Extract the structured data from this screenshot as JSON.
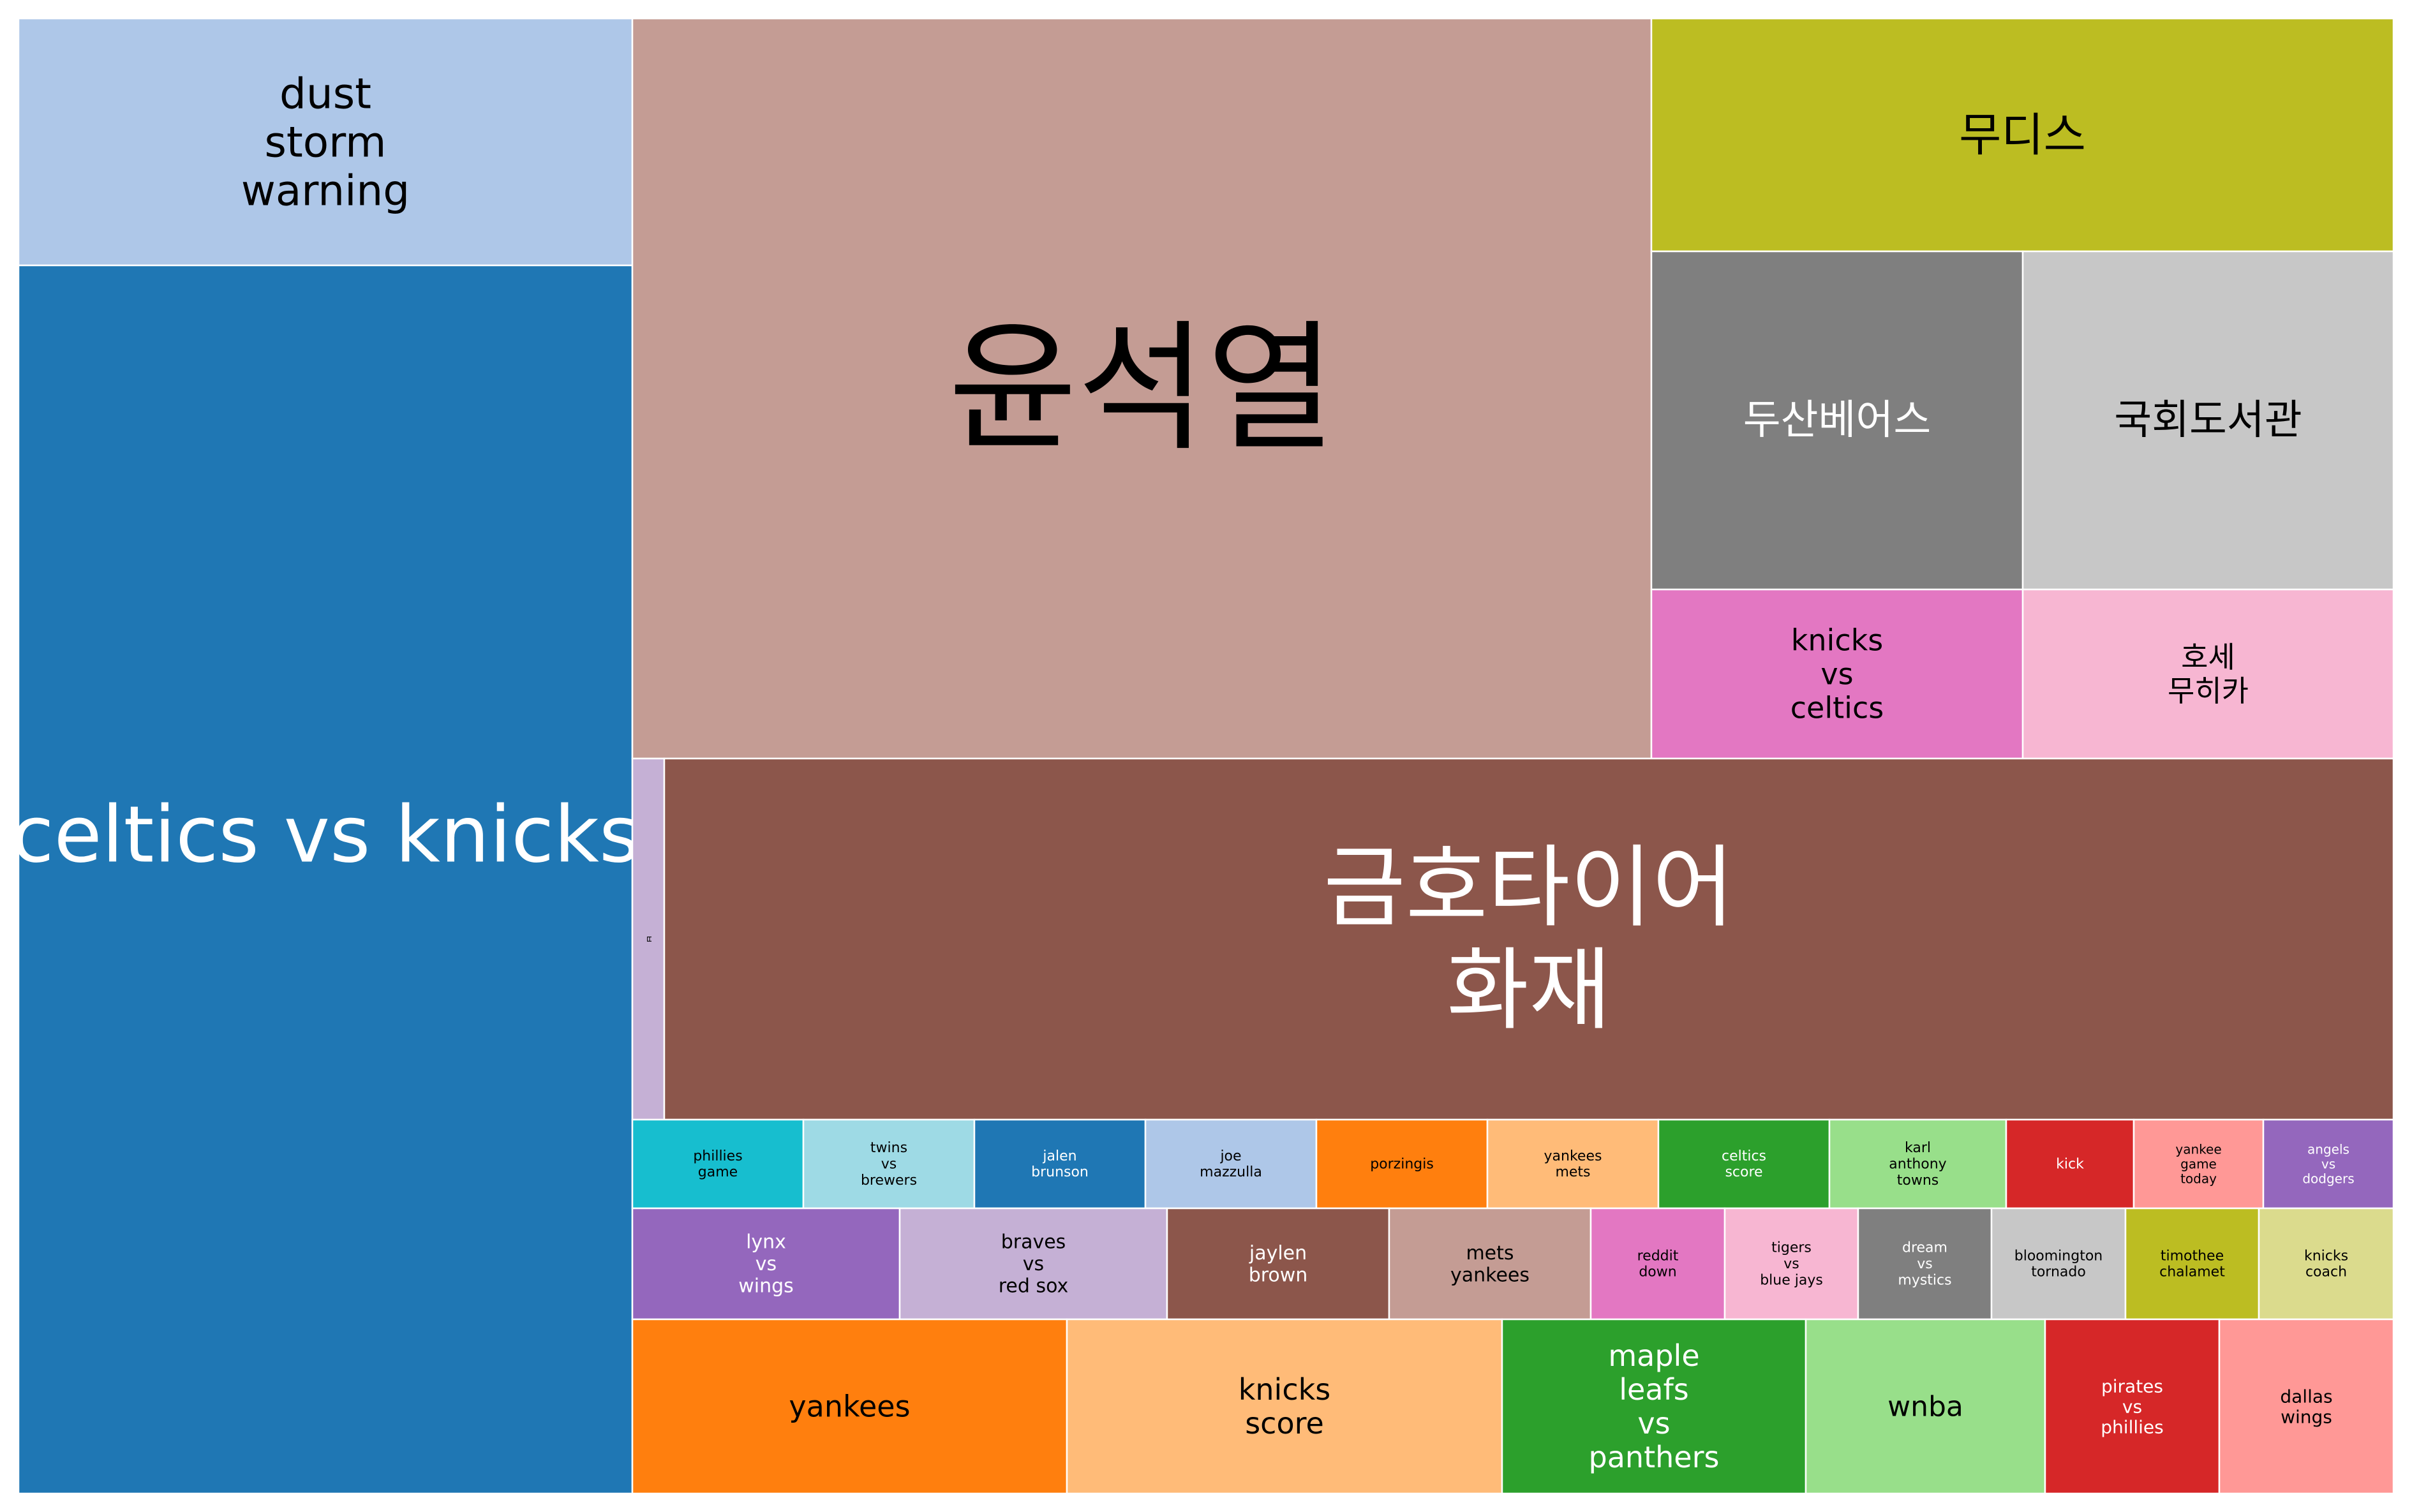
{
  "chart_data": {
    "type": "treemap",
    "items": [
      {
        "label": "dust storm warning",
        "color": "#aec7e8",
        "text_color": "#000000"
      },
      {
        "label": "celtics vs knicks",
        "color": "#1f77b4",
        "text_color": "#ffffff"
      },
      {
        "label": "윤석열",
        "color": "#c49c94",
        "text_color": "#000000"
      },
      {
        "label": "무디스",
        "color": "#bcbd22",
        "text_color": "#000000"
      },
      {
        "label": "두산베어스",
        "color": "#7f7f7f",
        "text_color": "#ffffff"
      },
      {
        "label": "국회도서관",
        "color": "#c7c7c7",
        "text_color": "#000000"
      },
      {
        "label": "knicks vs celtics",
        "color": "#e377c2",
        "text_color": "#000000"
      },
      {
        "label": "호세 무히카",
        "color": "#f7b6d2",
        "text_color": "#000000"
      },
      {
        "label": "ㅂ",
        "color": "#c5b0d5",
        "text_color": "#000000"
      },
      {
        "label": "금호타이어 화재",
        "color": "#8c564b",
        "text_color": "#ffffff"
      },
      {
        "label": "phillies game",
        "color": "#17becf",
        "text_color": "#000000"
      },
      {
        "label": "twins vs brewers",
        "color": "#9edae5",
        "text_color": "#000000"
      },
      {
        "label": "jalen brunson",
        "color": "#1f77b4",
        "text_color": "#ffffff"
      },
      {
        "label": "joe mazzulla",
        "color": "#aec7e8",
        "text_color": "#000000"
      },
      {
        "label": "porzingis",
        "color": "#ff7f0e",
        "text_color": "#000000"
      },
      {
        "label": "yankees mets",
        "color": "#ffbb78",
        "text_color": "#000000"
      },
      {
        "label": "celtics score",
        "color": "#2ca02c",
        "text_color": "#ffffff"
      },
      {
        "label": "karl anthony towns",
        "color": "#98df8a",
        "text_color": "#000000"
      },
      {
        "label": "kick",
        "color": "#d62728",
        "text_color": "#ffffff"
      },
      {
        "label": "yankee game today",
        "color": "#ff9896",
        "text_color": "#000000"
      },
      {
        "label": "angels vs dodgers",
        "color": "#9467bd",
        "text_color": "#ffffff"
      },
      {
        "label": "lynx vs wings",
        "color": "#9467bd",
        "text_color": "#ffffff"
      },
      {
        "label": "braves vs red sox",
        "color": "#c5b0d5",
        "text_color": "#000000"
      },
      {
        "label": "jaylen brown",
        "color": "#8c564b",
        "text_color": "#ffffff"
      },
      {
        "label": "mets yankees",
        "color": "#c49c94",
        "text_color": "#000000"
      },
      {
        "label": "reddit down",
        "color": "#e377c2",
        "text_color": "#000000"
      },
      {
        "label": "tigers vs blue jays",
        "color": "#f7b6d2",
        "text_color": "#000000"
      },
      {
        "label": "dream vs mystics",
        "color": "#7f7f7f",
        "text_color": "#ffffff"
      },
      {
        "label": "bloomington tornado",
        "color": "#c7c7c7",
        "text_color": "#000000"
      },
      {
        "label": "timothee chalamet",
        "color": "#bcbd22",
        "text_color": "#000000"
      },
      {
        "label": "knicks coach",
        "color": "#dbdb8d",
        "text_color": "#000000"
      },
      {
        "label": "yankees",
        "color": "#ff7f0e",
        "text_color": "#000000"
      },
      {
        "label": "knicks score",
        "color": "#ffbb78",
        "text_color": "#000000"
      },
      {
        "label": "maple leafs vs panthers",
        "color": "#2ca02c",
        "text_color": "#ffffff"
      },
      {
        "label": "wnba",
        "color": "#98df8a",
        "text_color": "#000000"
      },
      {
        "label": "pirates vs phillies",
        "color": "#d62728",
        "text_color": "#ffffff"
      },
      {
        "label": "dallas wings",
        "color": "#ff9896",
        "text_color": "#000000"
      }
    ]
  }
}
